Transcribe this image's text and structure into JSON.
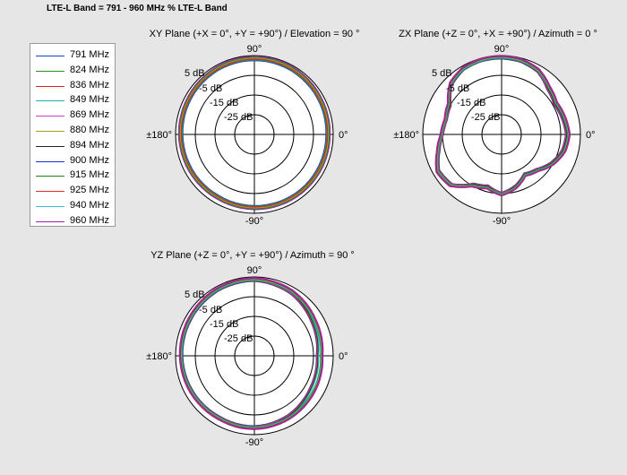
{
  "title": "LTE-L Band = 791 - 960 MHz % LTE-L Band",
  "legend": [
    {
      "label": "791 MHz",
      "color": "#1f3fbf"
    },
    {
      "label": "824 MHz",
      "color": "#2e8b2e"
    },
    {
      "label": "836 MHz",
      "color": "#e02020"
    },
    {
      "label": "849 MHz",
      "color": "#20b0b0"
    },
    {
      "label": "869 MHz",
      "color": "#d040d0"
    },
    {
      "label": "880 MHz",
      "color": "#b8a020"
    },
    {
      "label": "894 MHz",
      "color": "#202020"
    },
    {
      "label": "900 MHz",
      "color": "#2030d0"
    },
    {
      "label": "915 MHz",
      "color": "#208020"
    },
    {
      "label": "925 MHz",
      "color": "#e03030"
    },
    {
      "label": "940 MHz",
      "color": "#30c0d0"
    },
    {
      "label": "960 MHz",
      "color": "#a020b0"
    }
  ],
  "chart_data": [
    {
      "type": "polar",
      "title": "XY Plane (+X = 0°, +Y = +90°) / Elevation = 90 °",
      "angle_labels": {
        "top": "90°",
        "right": "0°",
        "bottom": "-90°",
        "left": "±180°"
      },
      "ring_labels": [
        "5 dB",
        "-5 dB",
        "-15 dB",
        "-25 dB"
      ],
      "rings_db": [
        5,
        -5,
        -15,
        -25
      ],
      "range_db": [
        -35,
        5
      ],
      "series_gain_db": [
        [
          [
            0,
            2
          ],
          [
            30,
            2.5
          ],
          [
            60,
            3
          ],
          [
            90,
            3.2
          ],
          [
            120,
            3
          ],
          [
            150,
            2.5
          ],
          [
            180,
            2
          ],
          [
            210,
            1.8
          ],
          [
            240,
            1.5
          ],
          [
            270,
            1.8
          ],
          [
            300,
            2
          ],
          [
            330,
            2
          ]
        ],
        [
          [
            0,
            2.3
          ],
          [
            30,
            2.8
          ],
          [
            60,
            3.3
          ],
          [
            90,
            3.5
          ],
          [
            120,
            3.2
          ],
          [
            150,
            2.8
          ],
          [
            180,
            2.3
          ],
          [
            210,
            2
          ],
          [
            240,
            1.8
          ],
          [
            270,
            2
          ],
          [
            300,
            2.3
          ],
          [
            330,
            2.3
          ]
        ],
        [
          [
            0,
            2.6
          ],
          [
            30,
            3
          ],
          [
            60,
            3.6
          ],
          [
            90,
            3.8
          ],
          [
            120,
            3.5
          ],
          [
            150,
            3
          ],
          [
            180,
            2.6
          ],
          [
            210,
            2.3
          ],
          [
            240,
            2
          ],
          [
            270,
            2.3
          ],
          [
            300,
            2.5
          ],
          [
            330,
            2.6
          ]
        ]
      ]
    },
    {
      "type": "polar",
      "title": "ZX Plane (+Z = 0°, +X = +90°) / Azimuth = 0 °",
      "angle_labels": {
        "top": "90°",
        "right": "0°",
        "bottom": "-90°",
        "left": "±180°"
      },
      "ring_labels": [
        "5 dB",
        "-5 dB",
        "-15 dB",
        "-25 dB"
      ],
      "rings_db": [
        5,
        -5,
        -15,
        -25
      ],
      "range_db": [
        -35,
        5
      ],
      "series_gain_db": [
        [
          [
            0,
            -2
          ],
          [
            15,
            -3
          ],
          [
            30,
            -4
          ],
          [
            45,
            -2
          ],
          [
            60,
            2
          ],
          [
            75,
            3.5
          ],
          [
            90,
            4
          ],
          [
            105,
            4
          ],
          [
            120,
            3.5
          ],
          [
            135,
            1
          ],
          [
            150,
            -5
          ],
          [
            165,
            -6
          ],
          [
            180,
            -5
          ],
          [
            195,
            -2
          ],
          [
            210,
            2
          ],
          [
            225,
            1
          ],
          [
            240,
            -6
          ],
          [
            255,
            -8
          ],
          [
            270,
            -5
          ],
          [
            285,
            -8
          ],
          [
            300,
            -12
          ],
          [
            315,
            -10
          ],
          [
            330,
            -6
          ],
          [
            345,
            -3
          ]
        ],
        [
          [
            0,
            -1
          ],
          [
            15,
            -2
          ],
          [
            30,
            -3
          ],
          [
            45,
            -1
          ],
          [
            60,
            2.5
          ],
          [
            75,
            3.8
          ],
          [
            90,
            4.2
          ],
          [
            105,
            4.1
          ],
          [
            120,
            3.6
          ],
          [
            135,
            1.5
          ],
          [
            150,
            -4
          ],
          [
            165,
            -5.5
          ],
          [
            180,
            -4.5
          ],
          [
            195,
            -1.5
          ],
          [
            210,
            2.5
          ],
          [
            225,
            1.5
          ],
          [
            240,
            -5
          ],
          [
            255,
            -7
          ],
          [
            270,
            -4.5
          ],
          [
            285,
            -7
          ],
          [
            300,
            -11
          ],
          [
            315,
            -9
          ],
          [
            330,
            -5
          ],
          [
            345,
            -2
          ]
        ]
      ]
    },
    {
      "type": "polar",
      "title": "YZ Plane (+Z = 0°, +Y = +90°) / Azimuth = 90 °",
      "angle_labels": {
        "top": "90°",
        "right": "0°",
        "bottom": "-90°",
        "left": "±180°"
      },
      "ring_labels": [
        "5 dB",
        "-5 dB",
        "-15 dB",
        "-25 dB"
      ],
      "rings_db": [
        5,
        -5,
        -15,
        -25
      ],
      "range_db": [
        -35,
        5
      ],
      "series_gain_db": [
        [
          [
            0,
            -3
          ],
          [
            30,
            -1
          ],
          [
            60,
            2
          ],
          [
            90,
            3.5
          ],
          [
            120,
            3.2
          ],
          [
            150,
            2.5
          ],
          [
            180,
            2
          ],
          [
            210,
            1.5
          ],
          [
            240,
            1
          ],
          [
            270,
            1.2
          ],
          [
            300,
            0
          ],
          [
            330,
            -2
          ]
        ],
        [
          [
            0,
            -1
          ],
          [
            30,
            0.5
          ],
          [
            60,
            2.8
          ],
          [
            90,
            3.8
          ],
          [
            120,
            3.5
          ],
          [
            150,
            2.8
          ],
          [
            180,
            2.2
          ],
          [
            210,
            1.8
          ],
          [
            240,
            1.4
          ],
          [
            270,
            1.6
          ],
          [
            300,
            1
          ],
          [
            330,
            0
          ]
        ]
      ]
    }
  ]
}
